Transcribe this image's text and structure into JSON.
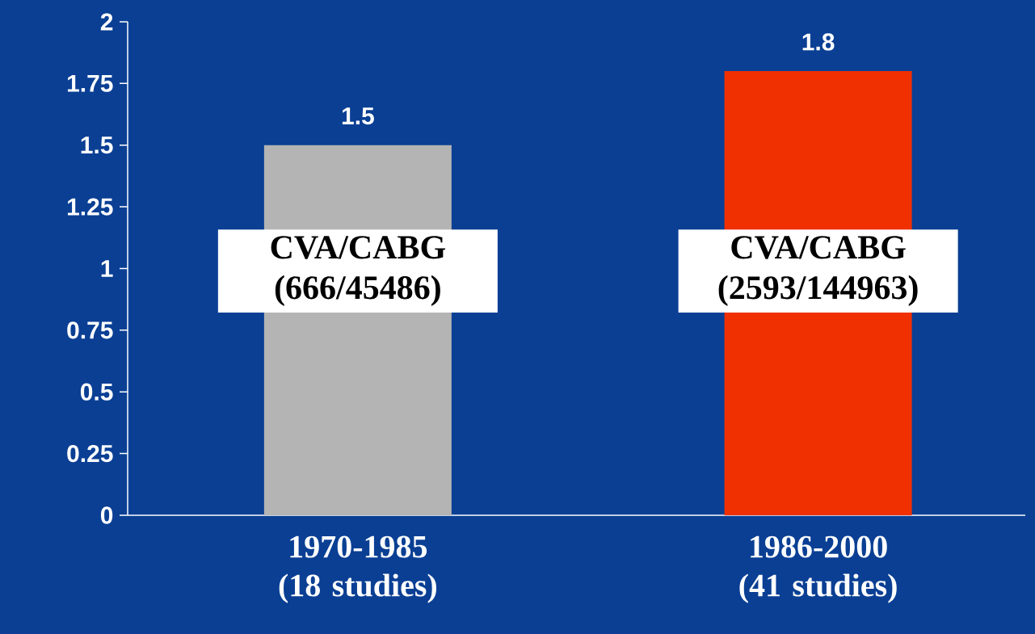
{
  "chart_data": {
    "type": "bar",
    "categories": [
      "1970-1985 (18 studies)",
      "1986-2000 (41 studies)"
    ],
    "values": [
      1.5,
      1.8
    ],
    "colors": [
      "#b4b4b4",
      "#f03000"
    ],
    "ylim": [
      0,
      2
    ],
    "yticks": [
      0,
      0.25,
      0.5,
      0.75,
      1,
      1.25,
      1.5,
      1.75,
      2
    ],
    "data_labels": true,
    "grid": false,
    "annotations": [
      "CVA/CABG (666/45486)",
      "CVA/CABG (2593/144963)"
    ]
  }
}
